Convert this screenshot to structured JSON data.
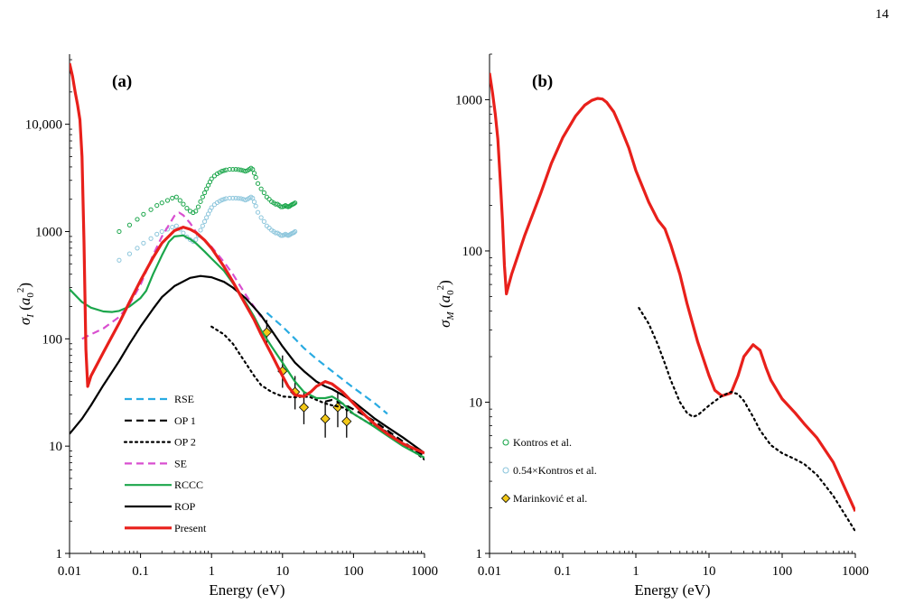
{
  "page_number": "14",
  "chart_data": [
    {
      "type": "line",
      "panel_label": "(a)",
      "xlabel": "Energy (eV)",
      "ylabel": "σ_I (a_0^2)",
      "ylabel_sym": "σ",
      "ylabel_sub": "I",
      "ylabel_unit_open": " (",
      "ylabel_unit_a": "a",
      "ylabel_unit_sub": "0",
      "ylabel_unit_sup": "2",
      "ylabel_unit_close": ")",
      "xscale": "log",
      "yscale": "log",
      "xlim": [
        0.01,
        1000
      ],
      "ylim": [
        1,
        45000
      ],
      "xticks": [
        0.01,
        0.1,
        1,
        10,
        100,
        1000
      ],
      "xtick_labels": [
        "0.01",
        "0.1",
        "1",
        "10",
        "100",
        "1000"
      ],
      "yticks": [
        1,
        10,
        100,
        1000,
        10000
      ],
      "ytick_labels": [
        "1",
        "10",
        "100",
        "1000",
        "10,000"
      ],
      "legend_position": "bottom-left",
      "series": [
        {
          "name": "RSE",
          "color": "#29abe2",
          "dash": "dash",
          "width": 2.2,
          "x": [
            6,
            10,
            15,
            20,
            30,
            50,
            70,
            100,
            200,
            300
          ],
          "y": [
            175,
            130,
            100,
            82,
            65,
            50,
            42,
            35,
            25,
            20
          ]
        },
        {
          "name": "OP 1",
          "color": "#000000",
          "dash": "dash",
          "width": 2.2,
          "x": [
            40,
            50,
            70,
            100,
            150,
            200,
            300,
            500,
            1000
          ],
          "y": [
            26,
            27,
            25,
            22,
            19,
            17,
            14,
            11,
            8
          ]
        },
        {
          "name": "OP 2",
          "color": "#000000",
          "dash": "dot",
          "width": 2.2,
          "x": [
            1,
            1.5,
            2,
            3,
            4,
            5,
            7,
            10,
            15,
            20,
            25,
            30,
            40,
            50,
            70,
            100,
            150,
            200,
            300,
            500,
            700,
            1000
          ],
          "y": [
            130,
            110,
            90,
            60,
            45,
            37,
            32,
            29,
            28.5,
            29,
            28.5,
            27,
            25,
            24,
            23,
            20,
            17,
            15.5,
            13.5,
            10.5,
            9,
            7.5
          ]
        },
        {
          "name": "SE",
          "color": "#d94fd0",
          "dash": "dash",
          "width": 2.2,
          "x": [
            0.015,
            0.02,
            0.03,
            0.05,
            0.07,
            0.1,
            0.15,
            0.2,
            0.3,
            0.35,
            0.4,
            0.5,
            0.6,
            0.7,
            0.8,
            1,
            1.5,
            2,
            3,
            5
          ],
          "y": [
            100,
            110,
            125,
            160,
            210,
            320,
            600,
            900,
            1400,
            1500,
            1420,
            1200,
            1000,
            900,
            830,
            720,
            520,
            400,
            260,
            160
          ]
        },
        {
          "name": "RCCC",
          "color": "#1ba64b",
          "dash": "solid",
          "width": 2.2,
          "x": [
            0.01,
            0.015,
            0.02,
            0.03,
            0.04,
            0.05,
            0.07,
            0.1,
            0.12,
            0.15,
            0.2,
            0.25,
            0.3,
            0.4,
            0.5,
            0.6,
            0.8,
            1,
            1.5,
            2,
            3,
            4,
            5,
            7,
            10,
            15,
            20,
            30,
            40,
            50,
            60,
            70,
            100,
            150,
            200,
            300,
            500,
            1000
          ],
          "y": [
            290,
            220,
            195,
            180,
            178,
            182,
            200,
            240,
            280,
            400,
            600,
            800,
            900,
            920,
            850,
            780,
            650,
            560,
            430,
            330,
            220,
            160,
            120,
            85,
            60,
            40,
            32,
            28,
            28,
            29,
            27,
            25,
            20,
            17,
            15,
            12.5,
            10,
            7.8
          ]
        },
        {
          "name": "ROP",
          "color": "#000000",
          "dash": "solid",
          "width": 2.2,
          "x": [
            0.01,
            0.015,
            0.02,
            0.03,
            0.05,
            0.07,
            0.1,
            0.15,
            0.2,
            0.3,
            0.5,
            0.7,
            1,
            1.5,
            2,
            3,
            4,
            5,
            7,
            10,
            15,
            20,
            30,
            40,
            50,
            70,
            100,
            150,
            200,
            300,
            500,
            1000
          ],
          "y": [
            13,
            18,
            24,
            37,
            62,
            90,
            130,
            190,
            245,
            310,
            370,
            385,
            375,
            340,
            300,
            240,
            195,
            165,
            120,
            85,
            60,
            50,
            40,
            36,
            34,
            30,
            26,
            21,
            18,
            15,
            12,
            8.6
          ]
        },
        {
          "name": "Present",
          "color": "#e8201b",
          "dash": "solid",
          "width": 3.2,
          "x": [
            0.01,
            0.011,
            0.012,
            0.013,
            0.014,
            0.015,
            0.016,
            0.017,
            0.018,
            0.02,
            0.03,
            0.05,
            0.07,
            0.1,
            0.15,
            0.2,
            0.3,
            0.4,
            0.5,
            0.6,
            0.8,
            1,
            1.5,
            2,
            3,
            4,
            5,
            7,
            10,
            12,
            15,
            20,
            25,
            30,
            40,
            50,
            70,
            100,
            150,
            200,
            300,
            500,
            1000
          ],
          "y": [
            37000,
            28000,
            20000,
            15000,
            11000,
            5000,
            800,
            80,
            36,
            45,
            75,
            140,
            220,
            350,
            570,
            780,
            1020,
            1100,
            1050,
            980,
            830,
            700,
            470,
            340,
            210,
            150,
            110,
            72,
            45,
            36,
            30,
            29,
            32,
            36,
            40,
            38,
            32,
            25,
            19,
            16,
            13,
            10.5,
            8.6
          ]
        }
      ],
      "markers": [
        {
          "name": "Kontros et al.",
          "symbol": "open-circle",
          "color": "#1ba64b",
          "x": [
            0.05,
            0.07,
            0.09,
            0.11,
            0.14,
            0.17,
            0.2,
            0.24,
            0.28,
            0.32,
            0.36,
            0.4,
            0.45,
            0.5,
            0.55,
            0.6,
            0.65,
            0.7,
            0.75,
            0.8,
            0.85,
            0.9,
            0.95,
            1,
            1.1,
            1.2,
            1.3,
            1.4,
            1.5,
            1.6,
            1.8,
            2,
            2.2,
            2.4,
            2.6,
            2.8,
            3,
            3.2,
            3.4,
            3.6,
            3.8,
            4,
            4.2,
            4.5,
            5,
            5.5,
            6,
            6.5,
            7,
            7.5,
            8,
            8.5,
            9,
            9.5,
            10,
            10.5,
            11,
            11.5,
            12,
            12.5,
            13,
            13.5,
            14,
            14.5,
            15
          ],
          "y": [
            1000,
            1150,
            1300,
            1450,
            1600,
            1750,
            1850,
            1950,
            2050,
            2100,
            1950,
            1800,
            1650,
            1550,
            1500,
            1550,
            1700,
            1900,
            2100,
            2300,
            2500,
            2700,
            2900,
            3100,
            3300,
            3450,
            3550,
            3650,
            3700,
            3750,
            3800,
            3800,
            3800,
            3780,
            3750,
            3700,
            3650,
            3700,
            3800,
            3900,
            3800,
            3500,
            3200,
            2800,
            2500,
            2300,
            2100,
            2000,
            1900,
            1850,
            1800,
            1800,
            1750,
            1700,
            1700,
            1720,
            1750,
            1720,
            1700,
            1720,
            1750,
            1780,
            1800,
            1820,
            1850
          ]
        },
        {
          "name": "0.54×Kontros et al.",
          "symbol": "open-circle",
          "color": "#8dc6dc",
          "x": [
            0.05,
            0.07,
            0.09,
            0.11,
            0.14,
            0.17,
            0.2,
            0.24,
            0.28,
            0.32,
            0.36,
            0.4,
            0.45,
            0.5,
            0.55,
            0.6,
            0.65,
            0.7,
            0.75,
            0.8,
            0.85,
            0.9,
            0.95,
            1,
            1.1,
            1.2,
            1.3,
            1.4,
            1.5,
            1.6,
            1.8,
            2,
            2.2,
            2.4,
            2.6,
            2.8,
            3,
            3.2,
            3.4,
            3.6,
            3.8,
            4,
            4.2,
            4.5,
            5,
            5.5,
            6,
            6.5,
            7,
            7.5,
            8,
            8.5,
            9,
            9.5,
            10,
            10.5,
            11,
            11.5,
            12,
            12.5,
            13,
            13.5,
            14,
            14.5,
            15
          ],
          "y": [
            540,
            620,
            700,
            780,
            860,
            945,
            1000,
            1050,
            1100,
            1130,
            1050,
            970,
            890,
            840,
            810,
            840,
            920,
            1030,
            1130,
            1240,
            1350,
            1460,
            1570,
            1670,
            1780,
            1860,
            1920,
            1970,
            2000,
            2030,
            2050,
            2050,
            2050,
            2040,
            2030,
            2000,
            1970,
            2000,
            2050,
            2100,
            2050,
            1890,
            1730,
            1510,
            1350,
            1240,
            1130,
            1080,
            1030,
            1000,
            970,
            970,
            945,
            920,
            920,
            930,
            945,
            930,
            920,
            930,
            945,
            960,
            970,
            980,
            1000
          ]
        },
        {
          "name": "Marinković et al.",
          "symbol": "diamond",
          "color": "#f2c818",
          "x": [
            6,
            10,
            15,
            20,
            40,
            60,
            80
          ],
          "y": [
            115,
            50,
            32,
            23,
            18,
            23,
            17
          ],
          "yerr_low": [
            85,
            35,
            22,
            16,
            12,
            15,
            12
          ],
          "yerr_high": [
            150,
            70,
            45,
            32,
            26,
            32,
            24
          ]
        }
      ]
    },
    {
      "type": "line",
      "panel_label": "(b)",
      "xlabel": "Energy (eV)",
      "ylabel": "σ_M (a_0^2)",
      "ylabel_sym": "σ",
      "ylabel_sub": "M",
      "ylabel_unit_open": " (",
      "ylabel_unit_a": "a",
      "ylabel_unit_sub": "0",
      "ylabel_unit_sup": "2",
      "ylabel_unit_close": ")",
      "xscale": "log",
      "yscale": "log",
      "xlim": [
        0.01,
        1000
      ],
      "ylim": [
        1,
        2000
      ],
      "xticks": [
        0.01,
        0.1,
        1,
        10,
        100,
        1000
      ],
      "xtick_labels": [
        "0.01",
        "0.1",
        "1",
        "10",
        "100",
        "1000"
      ],
      "yticks": [
        1,
        10,
        100,
        1000
      ],
      "ytick_labels": [
        "1",
        "10",
        "100",
        "1000"
      ],
      "legend_position": "bottom-left",
      "series": [
        {
          "name": "Present",
          "color": "#e8201b",
          "dash": "solid",
          "width": 3.2,
          "x": [
            0.01,
            0.011,
            0.012,
            0.013,
            0.014,
            0.015,
            0.016,
            0.017,
            0.018,
            0.02,
            0.03,
            0.05,
            0.07,
            0.1,
            0.15,
            0.2,
            0.25,
            0.3,
            0.35,
            0.4,
            0.5,
            0.6,
            0.8,
            1,
            1.5,
            2,
            2.5,
            3,
            4,
            5,
            7,
            10,
            12,
            15,
            20,
            25,
            30,
            40,
            50,
            60,
            70,
            100,
            150,
            200,
            300,
            500,
            1000
          ],
          "y": [
            1500,
            1100,
            800,
            550,
            300,
            160,
            80,
            52,
            58,
            70,
            125,
            240,
            380,
            560,
            780,
            920,
            990,
            1020,
            1010,
            960,
            830,
            680,
            480,
            340,
            210,
            160,
            140,
            110,
            70,
            45,
            25,
            15,
            12,
            11,
            11.5,
            15,
            20,
            24,
            22,
            17,
            14,
            10.5,
            8.5,
            7.2,
            5.8,
            4,
            1.9
          ]
        },
        {
          "name": "OP 2",
          "color": "#000000",
          "dash": "dot",
          "width": 2.2,
          "x": [
            1.1,
            1.5,
            2,
            2.5,
            3,
            4,
            5,
            6,
            7,
            10,
            15,
            20,
            25,
            30,
            40,
            50,
            70,
            100,
            150,
            200,
            300,
            500,
            1000
          ],
          "y": [
            42,
            33,
            24,
            18,
            14,
            10,
            8.5,
            8,
            8.2,
            9.5,
            11,
            11.7,
            11.3,
            10.2,
            8,
            6.5,
            5.2,
            4.6,
            4.2,
            3.9,
            3.3,
            2.4,
            1.4
          ]
        }
      ]
    }
  ]
}
